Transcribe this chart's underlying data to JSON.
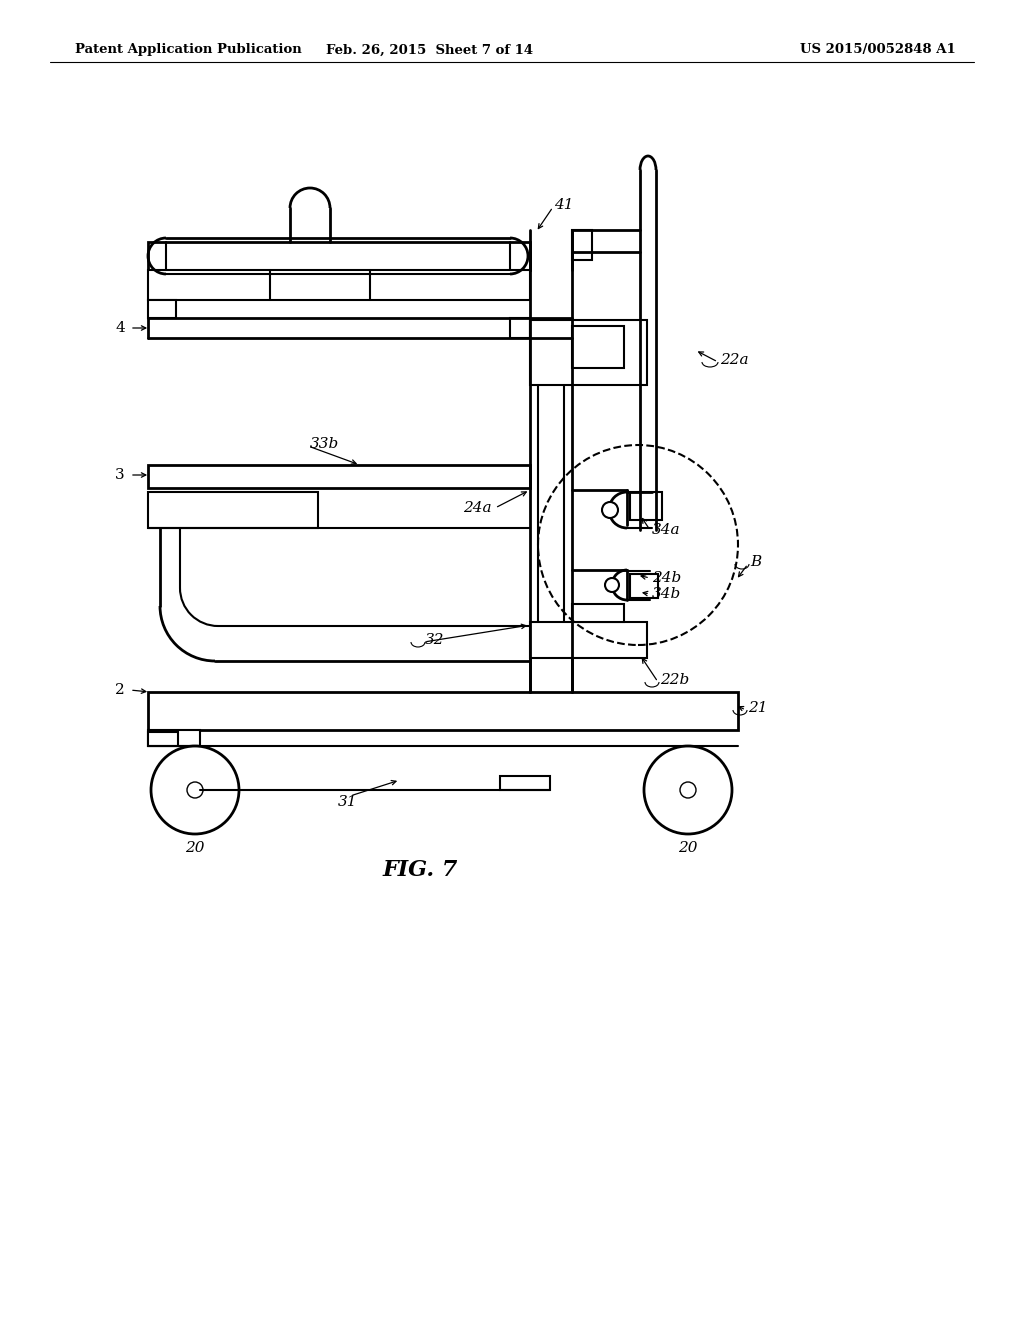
{
  "title": "FIG. 7",
  "header_left": "Patent Application Publication",
  "header_center": "Feb. 26, 2015  Sheet 7 of 14",
  "header_right": "US 2015/0052848 A1",
  "bg_color": "#ffffff",
  "line_color": "#000000",
  "lw": 1.5,
  "lw_thick": 2.0,
  "lw_thin": 1.0
}
